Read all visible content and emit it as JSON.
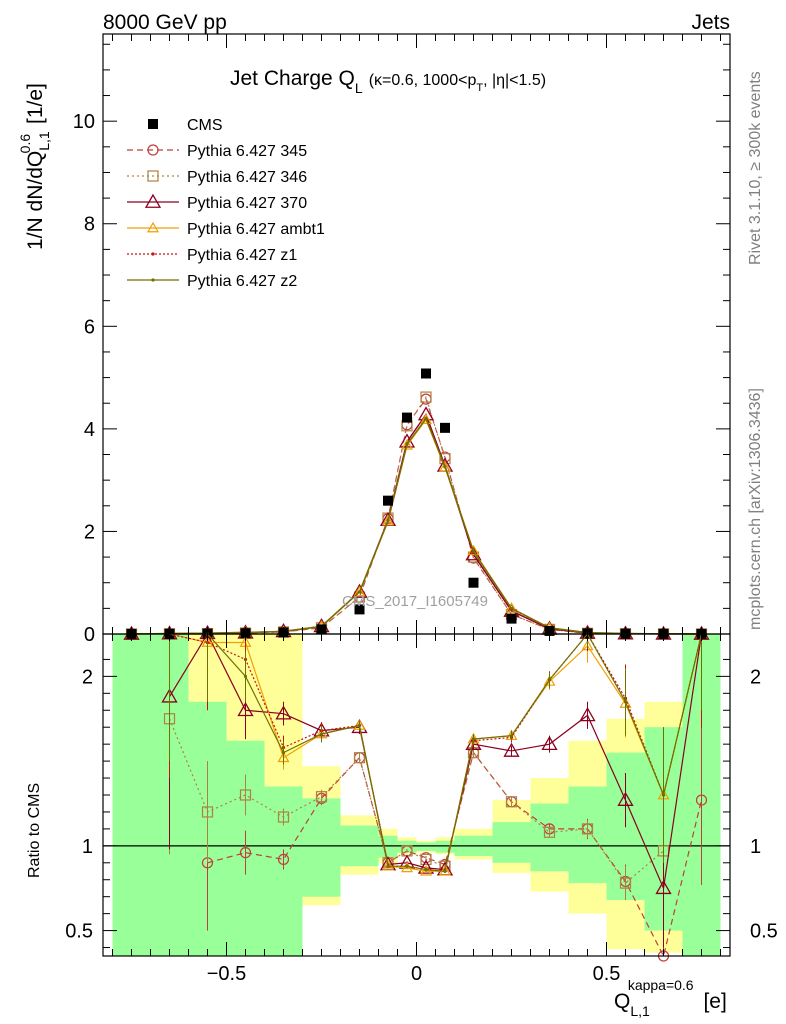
{
  "header": {
    "left": "8000 GeV pp",
    "right": "Jets"
  },
  "side_labels": {
    "rivet": "Rivet 3.1.10, ≥ 300k events",
    "mcplots": "mcplots.cern.ch [arXiv:1306.3436]"
  },
  "watermark": "CMS_2017_I1605749",
  "title": {
    "main": "Jet Charge Q",
    "main_sub": "L",
    "cut_a": "(κ=0.6, 1000<p",
    "cut_sub": "T",
    "cut_b": ", |η|<1.5)"
  },
  "axes": {
    "ylabel_main": "1/N dN/dQ",
    "ylabel_main_sup": "0.6",
    "ylabel_main_sub": "L,1",
    "ylabel_main_unit": " [1/e]",
    "ylabel_ratio": "Ratio to CMS",
    "xlabel": "Q",
    "xlabel_sup": "kappa=0.6",
    "xlabel_sub": "L,1",
    "xlabel_unit": " [e]"
  },
  "colors": {
    "data": "#000000",
    "band_inner": "#99ff99",
    "band_outer": "#ffff99",
    "s345": "#bf3f3f",
    "s346": "#b08040",
    "s370": "#8b0020",
    "ambt1": "#f0a000",
    "z1": "#cc1010",
    "z2": "#707000"
  },
  "chart_data": [
    {
      "type": "scatter",
      "panel": "main",
      "xlim": [
        -0.825,
        0.825
      ],
      "ylim": [
        0,
        11.7
      ],
      "yticks": [
        0,
        2,
        4,
        6,
        8,
        10
      ],
      "xticks": [
        -0.5,
        0,
        0.5
      ],
      "x": [
        -0.75,
        -0.65,
        -0.55,
        -0.45,
        -0.35,
        -0.25,
        -0.15,
        -0.075,
        -0.025,
        0.025,
        0.075,
        0.15,
        0.25,
        0.35,
        0.45,
        0.55,
        0.65,
        0.75
      ],
      "legend": [
        {
          "key": "cms",
          "label": "CMS"
        },
        {
          "key": "s345",
          "label": "Pythia 6.427 345"
        },
        {
          "key": "s346",
          "label": "Pythia 6.427 346"
        },
        {
          "key": "s370",
          "label": "Pythia 6.427 370"
        },
        {
          "key": "ambt1",
          "label": "Pythia 6.427 ambt1"
        },
        {
          "key": "z1",
          "label": "Pythia 6.427 z1"
        },
        {
          "key": "z2",
          "label": "Pythia 6.427 z2"
        }
      ],
      "series": [
        {
          "key": "cms",
          "name": "CMS",
          "values": [
            0.001,
            0.004,
            0.007,
            0.015,
            0.03,
            0.09,
            0.48,
            2.6,
            4.22,
            5.08,
            4.02,
            1.0,
            0.3,
            0.06,
            0.012,
            0.006,
            0.003,
            0.001
          ]
        },
        {
          "key": "s345",
          "name": "Pythia 6.427 345",
          "values": [
            0.001,
            0.004,
            0.008,
            0.017,
            0.04,
            0.12,
            0.72,
            2.25,
            4.08,
            4.58,
            3.45,
            1.48,
            0.38,
            0.09,
            0.014,
            0.005,
            0.003,
            0.001
          ]
        },
        {
          "key": "s346",
          "name": "Pythia 6.427 346",
          "values": [
            0.001,
            0.005,
            0.008,
            0.019,
            0.04,
            0.12,
            0.72,
            2.26,
            4.06,
            4.62,
            3.42,
            1.5,
            0.38,
            0.09,
            0.014,
            0.005,
            0.003,
            0.001
          ]
        },
        {
          "key": "s370",
          "name": "Pythia 6.427 370",
          "values": [
            0.001,
            0.008,
            0.015,
            0.026,
            0.052,
            0.15,
            0.82,
            2.22,
            3.75,
            4.28,
            3.28,
            1.55,
            0.45,
            0.1,
            0.02,
            0.007,
            0.002,
            0.001
          ]
        },
        {
          "key": "ambt1",
          "name": "Pythia 6.427 ambt1",
          "values": [
            0.001,
            0.01,
            0.015,
            0.033,
            0.045,
            0.15,
            0.82,
            2.2,
            3.68,
            4.18,
            3.25,
            1.62,
            0.5,
            0.12,
            0.026,
            0.011,
            0.004,
            0.002
          ]
        },
        {
          "key": "z1",
          "name": "Pythia 6.427 z1",
          "values": [
            0.001,
            0.009,
            0.015,
            0.032,
            0.046,
            0.15,
            0.82,
            2.21,
            3.7,
            4.2,
            3.26,
            1.6,
            0.49,
            0.12,
            0.026,
            0.011,
            0.004,
            0.002
          ]
        },
        {
          "key": "z2",
          "name": "Pythia 6.427 z2",
          "values": [
            0.001,
            0.009,
            0.015,
            0.033,
            0.046,
            0.15,
            0.82,
            2.2,
            3.7,
            4.2,
            3.26,
            1.61,
            0.5,
            0.12,
            0.027,
            0.011,
            0.004,
            0.002
          ]
        }
      ]
    },
    {
      "type": "line",
      "panel": "ratio",
      "xlim": [
        -0.825,
        0.825
      ],
      "ylim": [
        0.35,
        2.25
      ],
      "yticks": [
        0.5,
        1,
        2
      ],
      "xticks": [
        -0.5,
        0,
        0.5
      ],
      "x": [
        -0.75,
        -0.65,
        -0.55,
        -0.45,
        -0.35,
        -0.25,
        -0.15,
        -0.075,
        -0.025,
        0.025,
        0.075,
        0.15,
        0.25,
        0.35,
        0.45,
        0.55,
        0.65,
        0.75
      ],
      "band_edges": [
        -0.8,
        -0.7,
        -0.6,
        -0.5,
        -0.4,
        -0.3,
        -0.2,
        -0.1,
        -0.05,
        0.0,
        0.05,
        0.1,
        0.2,
        0.3,
        0.4,
        0.5,
        0.6,
        0.7,
        0.8
      ],
      "band_inner": [
        [
          0.35,
          2.25
        ],
        [
          0.35,
          2.25
        ],
        [
          0.35,
          1.85
        ],
        [
          0.35,
          1.62
        ],
        [
          0.35,
          1.35
        ],
        [
          0.7,
          1.28
        ],
        [
          0.88,
          1.12
        ],
        [
          0.93,
          1.06
        ],
        [
          0.96,
          1.03
        ],
        [
          0.97,
          1.02
        ],
        [
          0.96,
          1.03
        ],
        [
          0.94,
          1.06
        ],
        [
          0.9,
          1.14
        ],
        [
          0.85,
          1.25
        ],
        [
          0.78,
          1.35
        ],
        [
          0.68,
          1.55
        ],
        [
          0.5,
          1.7
        ],
        [
          0.35,
          2.25
        ]
      ],
      "band_outer": [
        [
          0.35,
          2.25
        ],
        [
          0.35,
          2.25
        ],
        [
          0.37,
          2.25
        ],
        [
          0.35,
          2.25
        ],
        [
          0.35,
          2.25
        ],
        [
          0.65,
          1.47
        ],
        [
          0.83,
          1.18
        ],
        [
          0.9,
          1.1
        ],
        [
          0.95,
          1.05
        ],
        [
          0.96,
          1.03
        ],
        [
          0.95,
          1.05
        ],
        [
          0.92,
          1.1
        ],
        [
          0.84,
          1.27
        ],
        [
          0.73,
          1.4
        ],
        [
          0.6,
          1.62
        ],
        [
          0.39,
          1.75
        ],
        [
          0.37,
          1.85
        ],
        [
          0.35,
          2.25
        ]
      ],
      "series": [
        {
          "key": "s345",
          "name": "Pythia 6.427 345",
          "values": [
            null,
            null,
            0.9,
            0.96,
            0.92,
            1.28,
            1.52,
            0.9,
            0.97,
            0.93,
            0.89,
            1.55,
            1.26,
            1.1,
            1.1,
            0.79,
            0.35,
            1.27
          ],
          "errors": [
            null,
            null,
            0.4,
            0.13,
            0.06,
            0.04,
            0.03,
            0.01,
            0.01,
            0.01,
            0.01,
            0.03,
            0.03,
            0.03,
            0.06,
            0.1,
            0.4,
            0.5
          ]
        },
        {
          "key": "s346",
          "name": "Pythia 6.427 346",
          "values": [
            null,
            1.75,
            1.2,
            1.3,
            1.17,
            1.29,
            1.52,
            0.9,
            0.97,
            0.92,
            0.88,
            1.55,
            1.26,
            1.08,
            1.1,
            0.78,
            0.97,
            null
          ],
          "errors": [
            null,
            0.8,
            0.3,
            0.12,
            0.05,
            0.04,
            0.03,
            0.01,
            0.01,
            0.01,
            0.01,
            0.03,
            0.03,
            0.03,
            0.05,
            0.1,
            0.4,
            null
          ]
        },
        {
          "key": "s370",
          "name": "Pythia 6.427 370",
          "values": [
            null,
            1.88,
            2.9,
            1.8,
            1.78,
            1.68,
            1.7,
            0.89,
            0.9,
            0.87,
            0.86,
            1.6,
            1.56,
            1.6,
            1.77,
            1.27,
            0.75,
            2.5
          ],
          "errors": [
            null,
            0.9,
            0.5,
            0.17,
            0.07,
            0.05,
            0.04,
            0.01,
            0.01,
            0.01,
            0.01,
            0.03,
            0.03,
            0.05,
            0.08,
            0.16,
            0.35,
            0.8
          ]
        },
        {
          "key": "ambt1",
          "name": "Pythia 6.427 ambt1",
          "values": [
            null,
            2.5,
            2.2,
            2.2,
            1.52,
            1.66,
            1.71,
            0.88,
            0.87,
            0.85,
            0.85,
            1.63,
            1.65,
            1.97,
            2.18,
            1.84,
            1.3,
            2.7
          ],
          "errors": [
            null,
            0.9,
            0.4,
            0.15,
            0.07,
            0.05,
            0.03,
            0.01,
            0.01,
            0.01,
            0.01,
            0.03,
            0.03,
            0.05,
            0.1,
            0.2,
            0.4,
            0.8
          ]
        },
        {
          "key": "z1",
          "name": "Pythia 6.427 z1",
          "values": [
            null,
            2.3,
            2.2,
            2.1,
            1.58,
            1.68,
            1.71,
            0.88,
            0.88,
            0.86,
            0.85,
            1.62,
            1.64,
            1.98,
            2.25,
            1.87,
            1.3,
            2.5
          ],
          "errors": [
            null,
            0.9,
            0.4,
            0.15,
            0.07,
            0.05,
            0.03,
            0.01,
            0.01,
            0.01,
            0.01,
            0.03,
            0.03,
            0.05,
            0.1,
            0.2,
            0.4,
            0.8
          ]
        },
        {
          "key": "z2",
          "name": "Pythia 6.427 z2",
          "values": [
            null,
            2.4,
            2.25,
            2.0,
            1.55,
            1.66,
            1.71,
            0.88,
            0.88,
            0.86,
            0.85,
            1.63,
            1.65,
            1.98,
            2.27,
            1.85,
            1.3,
            2.6
          ],
          "errors": [
            null,
            0.9,
            0.4,
            0.15,
            0.07,
            0.05,
            0.03,
            0.01,
            0.01,
            0.01,
            0.01,
            0.03,
            0.03,
            0.05,
            0.1,
            0.2,
            0.4,
            0.8
          ]
        }
      ]
    }
  ]
}
